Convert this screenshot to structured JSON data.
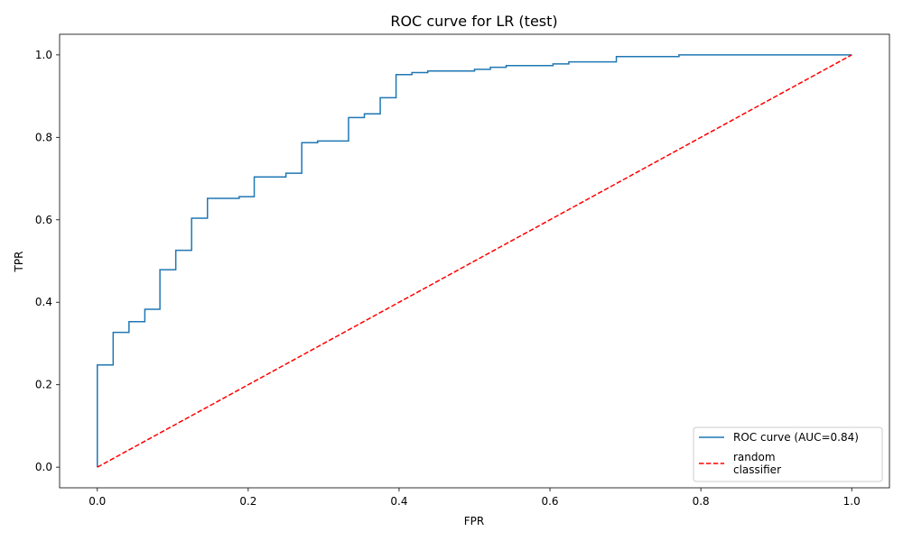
{
  "chart_data": {
    "type": "line",
    "title": "ROC curve for LR (test)",
    "xlabel": "FPR",
    "ylabel": "TPR",
    "xlim": [
      -0.05,
      1.05
    ],
    "ylim": [
      -0.05,
      1.05
    ],
    "xticks": [
      0.0,
      0.2,
      0.4,
      0.6,
      0.8,
      1.0
    ],
    "yticks": [
      0.0,
      0.2,
      0.4,
      0.6,
      0.8,
      1.0
    ],
    "xtick_labels": [
      "0.0",
      "0.2",
      "0.4",
      "0.6",
      "0.8",
      "1.0"
    ],
    "ytick_labels": [
      "0.0",
      "0.2",
      "0.4",
      "0.6",
      "0.8",
      "1.0"
    ],
    "grid": false,
    "legend_position": "lower-right",
    "series": [
      {
        "name": "ROC curve (AUC=0.84)",
        "style": "solid",
        "color": "#1f77b4",
        "x": [
          0,
          0,
          0.021,
          0.021,
          0.042,
          0.042,
          0.063,
          0.063,
          0.083,
          0.083,
          0.104,
          0.104,
          0.125,
          0.125,
          0.146,
          0.146,
          0.188,
          0.188,
          0.208,
          0.208,
          0.25,
          0.25,
          0.271,
          0.271,
          0.292,
          0.292,
          0.333,
          0.333,
          0.354,
          0.354,
          0.375,
          0.375,
          0.396,
          0.396,
          0.417,
          0.417,
          0.438,
          0.438,
          0.5,
          0.5,
          0.521,
          0.521,
          0.542,
          0.542,
          0.604,
          0.604,
          0.625,
          0.625,
          0.688,
          0.688,
          0.771,
          0.771,
          1.0
        ],
        "y": [
          0,
          0.248,
          0.248,
          0.327,
          0.327,
          0.353,
          0.353,
          0.383,
          0.383,
          0.479,
          0.479,
          0.526,
          0.526,
          0.604,
          0.604,
          0.652,
          0.652,
          0.656,
          0.656,
          0.704,
          0.704,
          0.713,
          0.713,
          0.787,
          0.787,
          0.791,
          0.791,
          0.848,
          0.848,
          0.857,
          0.857,
          0.896,
          0.896,
          0.952,
          0.952,
          0.957,
          0.957,
          0.961,
          0.961,
          0.965,
          0.965,
          0.97,
          0.97,
          0.974,
          0.974,
          0.978,
          0.978,
          0.983,
          0.983,
          0.996,
          0.996,
          1.0,
          1.0
        ]
      },
      {
        "name": "random\nclassifier",
        "style": "dashed",
        "color": "#ff0000",
        "x": [
          0,
          1
        ],
        "y": [
          0,
          1
        ]
      }
    ]
  }
}
